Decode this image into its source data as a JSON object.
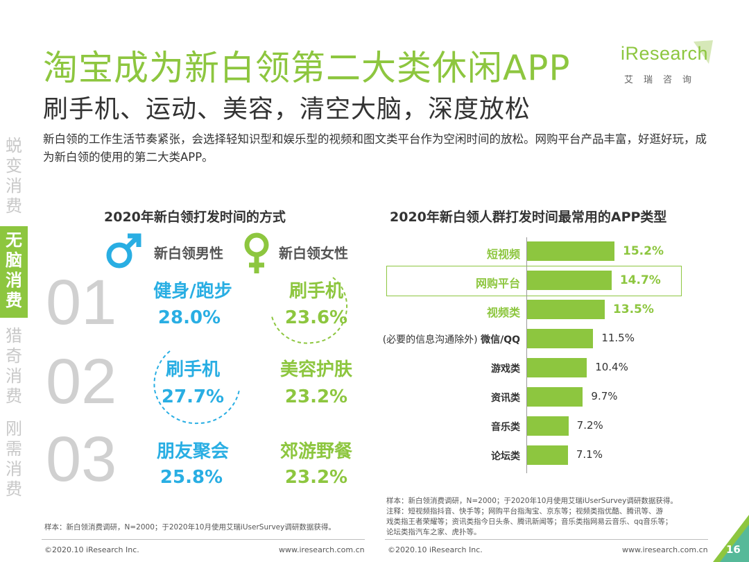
{
  "header": {
    "title": "淘宝成为新白领第二大类休闲APP",
    "subtitle": "刷手机、运动、美容，清空大脑，深度放松",
    "intro": "新白领的工作生活节奏紧张，会选择轻知识型和娱乐型的视频和图文类平台作为空闲时间的放松。网购平台产品丰富，好逛好玩，成为新白领的使用的第二大类APP。"
  },
  "logo": {
    "word": "iResearch",
    "cn": "艾瑞咨询"
  },
  "sidebar": {
    "sections": [
      {
        "chars": [
          "蜕",
          "变",
          "消",
          "费"
        ],
        "active": false
      },
      {
        "chars": [
          "无",
          "脑",
          "消",
          "费"
        ],
        "active": true
      },
      {
        "chars": [
          "猎",
          "奇",
          "消",
          "费"
        ],
        "active": false
      },
      {
        "chars": [
          "刚",
          "需",
          "消",
          "费"
        ],
        "active": false
      }
    ]
  },
  "left_panel": {
    "title": "2020年新白领打发时间的方式",
    "male_label": "新白领男性",
    "female_label": "新白领女性",
    "male_icon": "male-symbol-icon",
    "female_icon": "female-symbol-icon",
    "ranks": [
      "01",
      "02",
      "03"
    ],
    "male": [
      {
        "activity": "健身/跑步",
        "pct": "28.0%"
      },
      {
        "activity": "刷手机",
        "pct": "27.7%"
      },
      {
        "activity": "朋友聚会",
        "pct": "25.8%"
      }
    ],
    "female": [
      {
        "activity": "刷手机",
        "pct": "23.6%"
      },
      {
        "activity": "美容护肤",
        "pct": "23.2%"
      },
      {
        "activity": "郊游野餐",
        "pct": "23.2%"
      }
    ],
    "note": "样本：新白领消费调研，N=2000；于2020年10月使用艾瑞iUserSurvey调研数据获得。"
  },
  "chart_data": {
    "type": "bar",
    "orientation": "horizontal",
    "title": "2020年新白领人群打发时间最常用的APP类型",
    "categories": [
      "短视频",
      "网购平台",
      "视频类",
      "(必要的信息沟通除外) 微信/QQ",
      "游戏类",
      "资讯类",
      "音乐类",
      "论坛类"
    ],
    "values": [
      15.2,
      14.7,
      13.5,
      11.5,
      10.4,
      9.7,
      7.2,
      7.1
    ],
    "value_labels": [
      "15.2%",
      "14.7%",
      "13.5%",
      "11.5%",
      "10.4%",
      "9.7%",
      "7.2%",
      "7.1%"
    ],
    "label_prefix": [
      "",
      "",
      "",
      "(必要的信息沟通除外) ",
      "",
      "",
      "",
      ""
    ],
    "label_main": [
      "短视频",
      "网购平台",
      "视频类",
      "微信/QQ",
      "游戏类",
      "资讯类",
      "音乐类",
      "论坛类"
    ],
    "emphasized": [
      true,
      true,
      true,
      false,
      false,
      false,
      false,
      false
    ],
    "boxed_category": "网购平台",
    "unit": "%",
    "bar_color": "#8dc63f"
  },
  "right_note": [
    "样本：新白领消费调研，N=2000；于2020年10月使用艾瑞iUserSurvey调研数据获得。",
    "注释：短视频指抖音、快手等；网购平台指淘宝、京东等；视频类指优酷、腾讯等、游",
    "戏类指王者荣耀等；资讯类指今日头条、腾讯新闻等；音乐类指网易云音乐、qq音乐等；",
    "论坛类指汽车之家、虎扑等。"
  ],
  "footer": {
    "left_copyright": "©2020.10 iResearch Inc.",
    "left_url": "www.iresearch.com.cn",
    "right_copyright": "©2020.10 iResearch Inc.",
    "right_url": "www.iresearch.com.cn",
    "page_number": "16"
  },
  "colors": {
    "accent_green": "#8dc63f",
    "accent_blue": "#29aee3",
    "rank_gray": "#d0d0d0"
  }
}
